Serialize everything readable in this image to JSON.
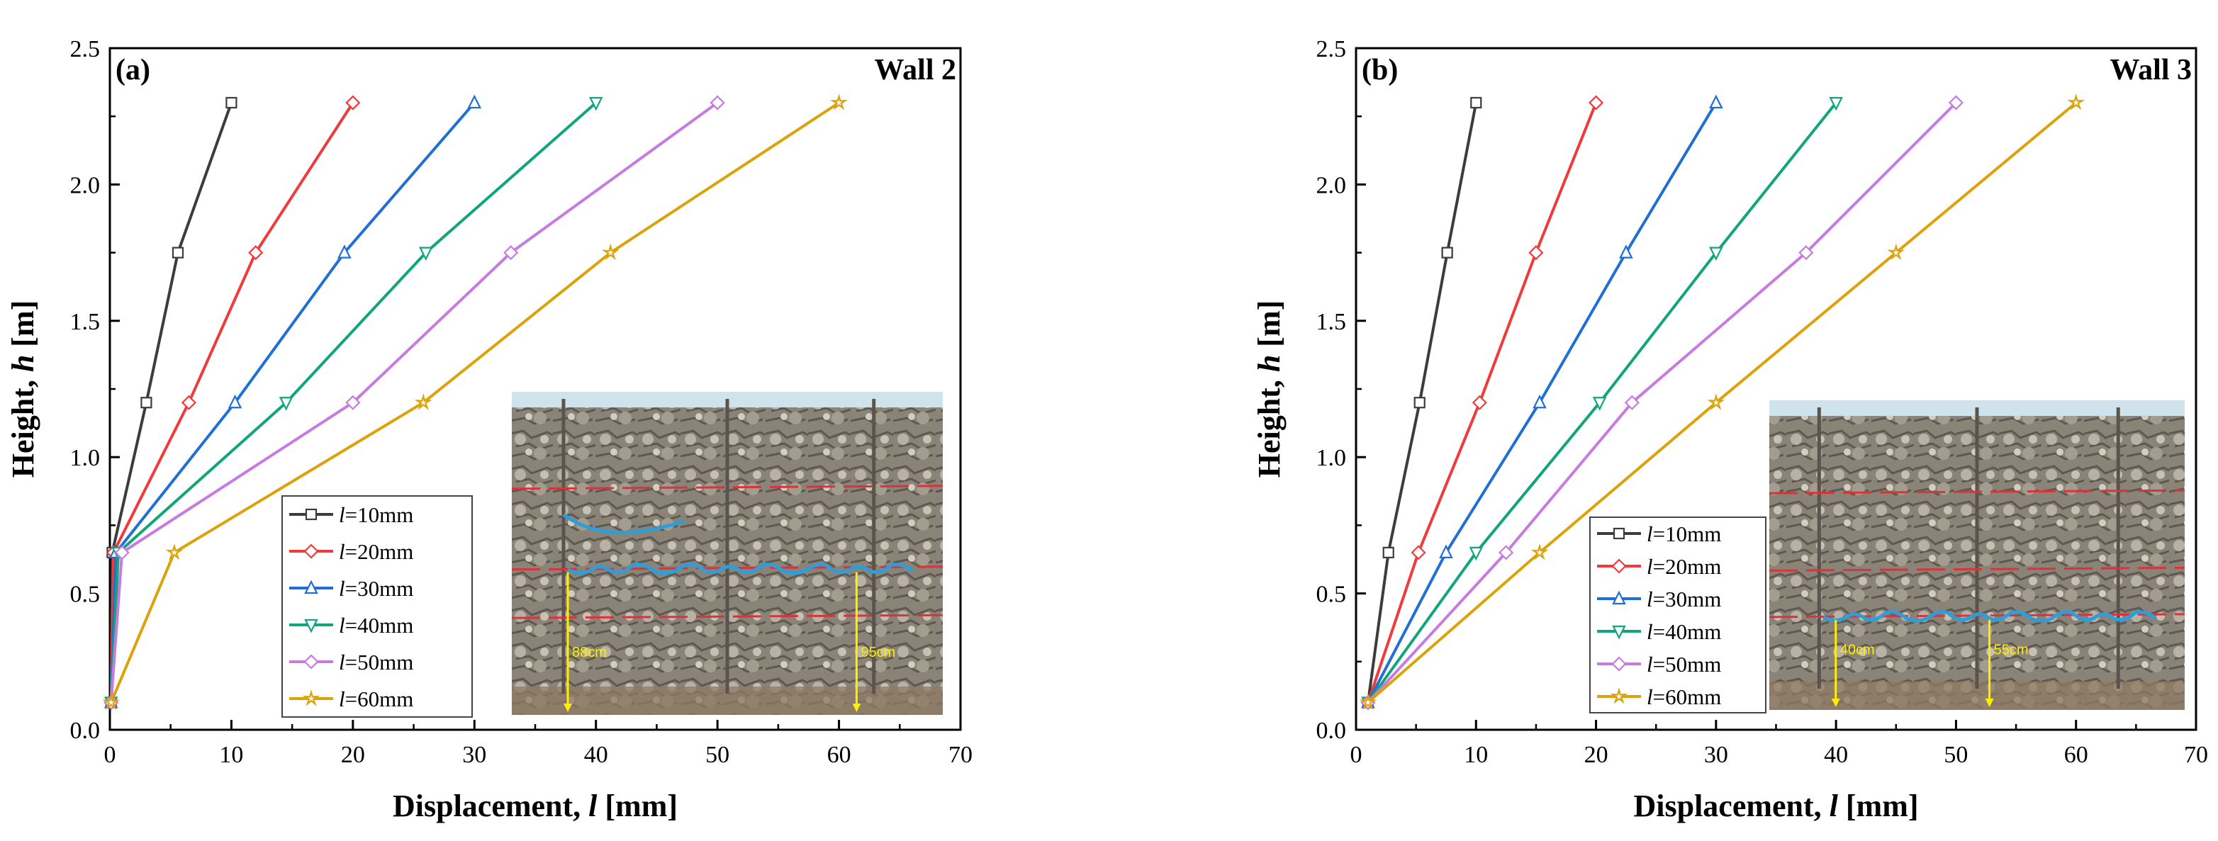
{
  "colors": {
    "l10": "#3c3c3c",
    "l20": "#ef3b3b",
    "l30": "#1f6fd6",
    "l40": "#10a57a",
    "l50": "#c77be0",
    "l60": "#dca20a",
    "photo_yellow": "#ffee00",
    "crack_blue": "#2f9ed8",
    "marker_red": "#d9333b"
  },
  "chart_data": [
    {
      "type": "line",
      "panel_label": "(a)",
      "wall_label": "Wall 2",
      "xlabel": "Displacement, l [mm]",
      "xlabel_parts": {
        "pre": "Displacement, ",
        "var": "l",
        "post": " [mm]"
      },
      "ylabel": "Height, h [m]",
      "ylabel_parts": {
        "pre": "Height, ",
        "var": "h",
        "post": " [m]"
      },
      "xlim": [
        0,
        70
      ],
      "ylim": [
        0,
        2.5
      ],
      "xticks": [
        "0",
        "10",
        "20",
        "30",
        "40",
        "50",
        "60",
        "70"
      ],
      "yticks": [
        "0.0",
        "0.5",
        "1.0",
        "1.5",
        "2.0",
        "2.5"
      ],
      "legend_placement": "lower-center",
      "series": [
        {
          "name": "l=10mm",
          "color_key": "l10",
          "marker": "square",
          "x": [
            0.1,
            0.2,
            3.0,
            5.6,
            10.0
          ],
          "y": [
            0.1,
            0.65,
            1.2,
            1.75,
            2.3
          ]
        },
        {
          "name": "l=20mm",
          "color_key": "l20",
          "marker": "diamond",
          "x": [
            0.1,
            0.3,
            6.5,
            12.0,
            20.0
          ],
          "y": [
            0.1,
            0.65,
            1.2,
            1.75,
            2.3
          ]
        },
        {
          "name": "l=30mm",
          "color_key": "l30",
          "marker": "triangle",
          "x": [
            0.1,
            0.5,
            10.3,
            19.3,
            30.0
          ],
          "y": [
            0.1,
            0.65,
            1.2,
            1.75,
            2.3
          ]
        },
        {
          "name": "l=40mm",
          "color_key": "l40",
          "marker": "triangle-down",
          "x": [
            0.1,
            0.7,
            14.5,
            26.0,
            40.0
          ],
          "y": [
            0.1,
            0.65,
            1.2,
            1.75,
            2.3
          ]
        },
        {
          "name": "l=50mm",
          "color_key": "l50",
          "marker": "diamond",
          "x": [
            0.1,
            1.0,
            20.0,
            33.0,
            50.0
          ],
          "y": [
            0.1,
            0.65,
            1.2,
            1.75,
            2.3
          ]
        },
        {
          "name": "l=60mm",
          "color_key": "l60",
          "marker": "star",
          "x": [
            0.1,
            5.3,
            25.8,
            41.2,
            60.0
          ],
          "y": [
            0.1,
            0.65,
            1.2,
            1.75,
            2.3
          ]
        }
      ],
      "photo_labels": [
        "88cm",
        "95cm"
      ]
    },
    {
      "type": "line",
      "panel_label": "(b)",
      "wall_label": "Wall 3",
      "xlabel": "Displacement, l [mm]",
      "xlabel_parts": {
        "pre": "Displacement, ",
        "var": "l",
        "post": " [mm]"
      },
      "ylabel": "Height, h [m]",
      "ylabel_parts": {
        "pre": "Height, ",
        "var": "h",
        "post": " [m]"
      },
      "xlim": [
        0,
        70
      ],
      "ylim": [
        0,
        2.5
      ],
      "xticks": [
        "0",
        "10",
        "20",
        "30",
        "40",
        "50",
        "60",
        "70"
      ],
      "yticks": [
        "0.0",
        "0.5",
        "1.0",
        "1.5",
        "2.0",
        "2.5"
      ],
      "legend_placement": "lower-center",
      "series": [
        {
          "name": "l=10mm",
          "color_key": "l10",
          "marker": "square",
          "x": [
            1.0,
            2.7,
            5.3,
            7.6,
            10.0
          ],
          "y": [
            0.1,
            0.65,
            1.2,
            1.75,
            2.3
          ]
        },
        {
          "name": "l=20mm",
          "color_key": "l20",
          "marker": "diamond",
          "x": [
            1.0,
            5.2,
            10.3,
            15.0,
            20.0
          ],
          "y": [
            0.1,
            0.65,
            1.2,
            1.75,
            2.3
          ]
        },
        {
          "name": "l=30mm",
          "color_key": "l30",
          "marker": "triangle",
          "x": [
            1.0,
            7.5,
            15.3,
            22.5,
            30.0
          ],
          "y": [
            0.1,
            0.65,
            1.2,
            1.75,
            2.3
          ]
        },
        {
          "name": "l=40mm",
          "color_key": "l40",
          "marker": "triangle-down",
          "x": [
            1.0,
            10.0,
            20.3,
            30.0,
            40.0
          ],
          "y": [
            0.1,
            0.65,
            1.2,
            1.75,
            2.3
          ]
        },
        {
          "name": "l=50mm",
          "color_key": "l50",
          "marker": "diamond",
          "x": [
            1.0,
            12.5,
            23.0,
            37.5,
            50.0
          ],
          "y": [
            0.1,
            0.65,
            1.2,
            1.75,
            2.3
          ]
        },
        {
          "name": "l=60mm",
          "color_key": "l60",
          "marker": "star",
          "x": [
            1.0,
            15.3,
            30.0,
            45.0,
            60.0
          ],
          "y": [
            0.1,
            0.65,
            1.2,
            1.75,
            2.3
          ]
        }
      ],
      "photo_labels": [
        "40cm",
        "55cm"
      ]
    }
  ]
}
